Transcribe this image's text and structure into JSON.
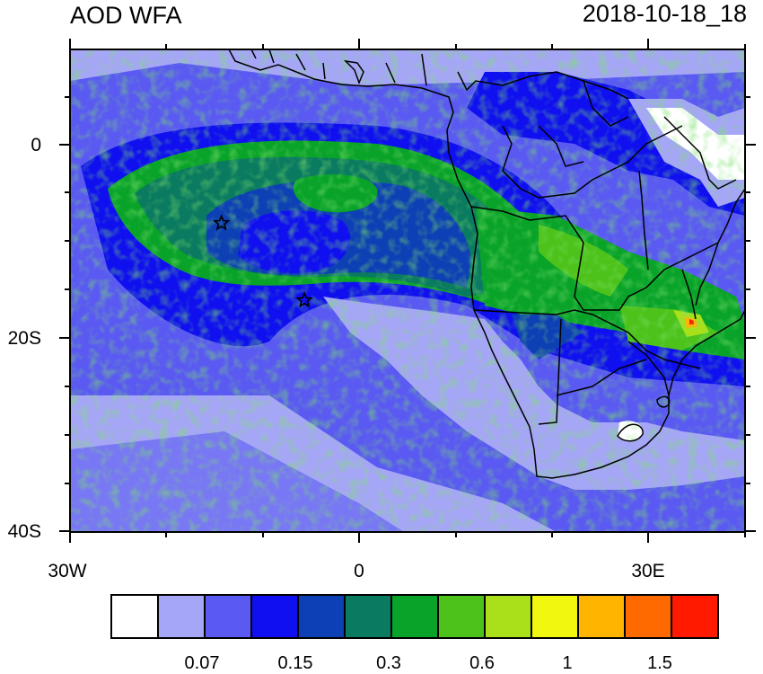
{
  "header": {
    "title": "AOD WFA",
    "datetime": "2018-10-18_18"
  },
  "axes": {
    "y_labels": [
      "0",
      "20S",
      "40S"
    ],
    "x_labels": [
      "30W",
      "0",
      "30E"
    ]
  },
  "colorbar": {
    "colors": [
      "#ffffff",
      "#a6a6f7",
      "#5a5af2",
      "#0f0ff0",
      "#0d3fb5",
      "#0a7a60",
      "#0aa32a",
      "#4dc21a",
      "#a9e01a",
      "#f2f70f",
      "#ffb400",
      "#ff6a00",
      "#ff1a00"
    ],
    "labels": [
      "0.07",
      "0.15",
      "0.3",
      "0.6",
      "1",
      "1.5"
    ]
  },
  "markers": [
    {
      "name": "star-marker-1",
      "lon": -14.3,
      "lat": -8.0
    },
    {
      "name": "star-marker-2",
      "lon": -5.7,
      "lat": -16.0
    }
  ]
}
